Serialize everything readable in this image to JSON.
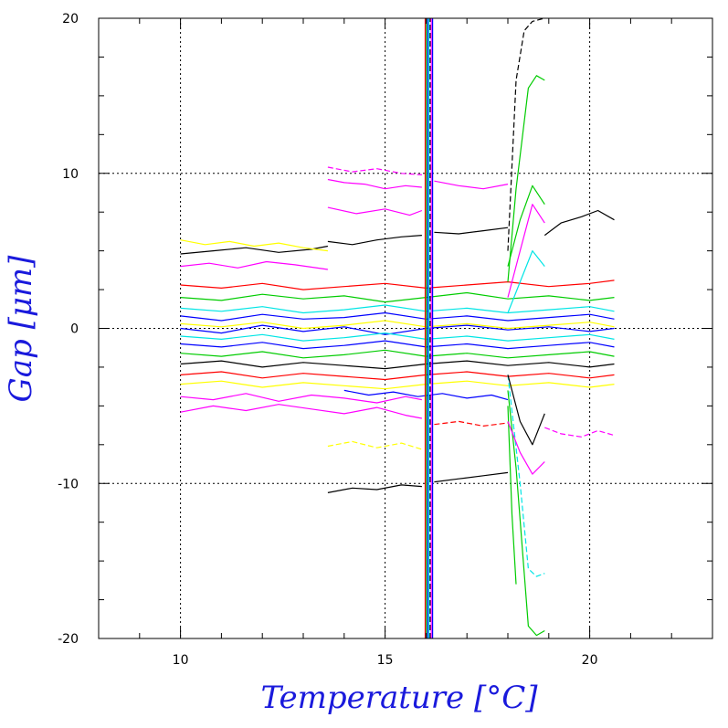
{
  "chart_data": {
    "type": "line",
    "title": "",
    "xlabel": "Temperature [°C]",
    "ylabel": "Gap [μm]",
    "xlim": [
      8,
      23
    ],
    "ylim": [
      -20,
      20
    ],
    "x_ticks": [
      {
        "value": 10,
        "label": "10"
      },
      {
        "value": 15,
        "label": "15"
      },
      {
        "value": 20,
        "label": "20"
      }
    ],
    "y_ticks": [
      {
        "value": 20,
        "label": "20"
      },
      {
        "value": 10,
        "label": "10"
      },
      {
        "value": 0,
        "label": "0"
      },
      {
        "value": -10,
        "label": "-10"
      },
      {
        "value": -20,
        "label": "-20"
      }
    ],
    "grid": true,
    "legend": "none",
    "colors": {
      "axis_title": "#1a1adc",
      "series_palette": [
        "#000000",
        "#ff0000",
        "#00cc00",
        "#0000ff",
        "#00e5e5",
        "#ff00ff",
        "#ffff00"
      ]
    },
    "series": [
      {
        "color": "#ff00ff",
        "style": "solid",
        "x": [
          13.6,
          14.0,
          14.5,
          15.0,
          15.5,
          15.9
        ],
        "y": [
          9.6,
          9.4,
          9.3,
          9.0,
          9.2,
          9.1
        ]
      },
      {
        "color": "#ff00ff",
        "style": "dashed",
        "x": [
          13.6,
          14.2,
          14.8,
          15.4,
          15.9
        ],
        "y": [
          10.4,
          10.1,
          10.3,
          10.0,
          9.9
        ]
      },
      {
        "color": "#ff00ff",
        "style": "solid",
        "x": [
          13.6,
          14.3,
          15.0,
          15.6,
          15.9
        ],
        "y": [
          7.8,
          7.4,
          7.7,
          7.3,
          7.6
        ]
      },
      {
        "color": "#ff00ff",
        "style": "solid",
        "x": [
          16.2,
          16.8,
          17.4,
          18.0
        ],
        "y": [
          9.5,
          9.2,
          9.0,
          9.3
        ]
      },
      {
        "color": "#000000",
        "style": "solid",
        "x": [
          13.6,
          14.2,
          14.8,
          15.4,
          15.9
        ],
        "y": [
          5.6,
          5.4,
          5.7,
          5.9,
          6.0
        ]
      },
      {
        "color": "#000000",
        "style": "solid",
        "x": [
          16.2,
          16.8,
          17.4,
          18.0
        ],
        "y": [
          6.2,
          6.1,
          6.3,
          6.5
        ]
      },
      {
        "color": "#000000",
        "style": "solid",
        "x": [
          18.9,
          19.3,
          19.8,
          20.2,
          20.6
        ],
        "y": [
          6.0,
          6.8,
          7.2,
          7.6,
          7.0
        ]
      },
      {
        "color": "#000000",
        "style": "solid",
        "x": [
          10.0,
          10.8,
          11.6,
          12.4,
          13.2,
          13.6
        ],
        "y": [
          4.8,
          5.0,
          5.2,
          4.9,
          5.1,
          5.3
        ]
      },
      {
        "color": "#ffff00",
        "style": "solid",
        "x": [
          10.0,
          10.6,
          11.2,
          11.8,
          12.4,
          13.0,
          13.6
        ],
        "y": [
          5.7,
          5.4,
          5.6,
          5.3,
          5.5,
          5.2,
          5.0
        ]
      },
      {
        "color": "#ff00ff",
        "style": "solid",
        "x": [
          10.0,
          10.7,
          11.4,
          12.1,
          12.8,
          13.6
        ],
        "y": [
          4.0,
          4.2,
          3.9,
          4.3,
          4.1,
          3.8
        ]
      },
      {
        "color": "#ff0000",
        "style": "solid",
        "x": [
          10.0,
          11.0,
          12.0,
          13.0,
          14.0,
          15.0,
          16.0,
          17.0,
          18.0,
          19.0,
          20.0,
          20.6
        ],
        "y": [
          2.8,
          2.6,
          2.9,
          2.5,
          2.7,
          2.9,
          2.6,
          2.8,
          3.0,
          2.7,
          2.9,
          3.1
        ]
      },
      {
        "color": "#00cc00",
        "style": "solid",
        "x": [
          10.0,
          11.0,
          12.0,
          13.0,
          14.0,
          15.0,
          16.0,
          17.0,
          18.0,
          19.0,
          20.0,
          20.6
        ],
        "y": [
          2.0,
          1.8,
          2.2,
          1.9,
          2.1,
          1.7,
          2.0,
          2.3,
          1.9,
          2.1,
          1.8,
          2.0
        ]
      },
      {
        "color": "#00e5e5",
        "style": "solid",
        "x": [
          10.0,
          11.0,
          12.0,
          13.0,
          14.0,
          15.0,
          16.0,
          17.0,
          18.0,
          19.0,
          20.0,
          20.6
        ],
        "y": [
          1.3,
          1.1,
          1.4,
          1.0,
          1.2,
          1.5,
          1.1,
          1.3,
          1.0,
          1.2,
          1.4,
          1.1
        ]
      },
      {
        "color": "#0000ff",
        "style": "solid",
        "x": [
          10.0,
          11.0,
          12.0,
          13.0,
          14.0,
          15.0,
          16.0,
          17.0,
          18.0,
          19.0,
          20.0,
          20.6
        ],
        "y": [
          0.8,
          0.5,
          0.9,
          0.6,
          0.7,
          1.0,
          0.6,
          0.8,
          0.5,
          0.7,
          0.9,
          0.6
        ]
      },
      {
        "color": "#ffff00",
        "style": "solid",
        "x": [
          10.0,
          11.0,
          12.0,
          13.0,
          14.0,
          15.0,
          16.0,
          17.0,
          18.0,
          19.0,
          20.0,
          20.6
        ],
        "y": [
          0.3,
          0.1,
          0.4,
          0.0,
          0.2,
          0.5,
          0.1,
          0.3,
          0.0,
          0.2,
          0.4,
          0.1
        ]
      },
      {
        "color": "#0000ff",
        "style": "solid",
        "x": [
          10.0,
          11.0,
          12.0,
          13.0,
          14.0,
          15.0,
          16.0,
          17.0,
          18.0,
          19.0,
          20.0,
          20.6
        ],
        "y": [
          0.0,
          -0.3,
          0.2,
          -0.2,
          0.1,
          -0.4,
          0.0,
          0.2,
          -0.1,
          0.1,
          -0.2,
          0.0
        ]
      },
      {
        "color": "#00e5e5",
        "style": "solid",
        "x": [
          10.0,
          11.0,
          12.0,
          13.0,
          14.0,
          15.0,
          16.0,
          17.0,
          18.0,
          19.0,
          20.0,
          20.6
        ],
        "y": [
          -0.5,
          -0.7,
          -0.4,
          -0.8,
          -0.6,
          -0.3,
          -0.7,
          -0.5,
          -0.8,
          -0.6,
          -0.4,
          -0.7
        ]
      },
      {
        "color": "#0000ff",
        "style": "solid",
        "x": [
          10.0,
          11.0,
          12.0,
          13.0,
          14.0,
          15.0,
          16.0,
          17.0,
          18.0,
          19.0,
          20.0,
          20.6
        ],
        "y": [
          -1.0,
          -1.2,
          -0.9,
          -1.3,
          -1.1,
          -0.8,
          -1.2,
          -1.0,
          -1.3,
          -1.1,
          -0.9,
          -1.2
        ]
      },
      {
        "color": "#00cc00",
        "style": "solid",
        "x": [
          10.0,
          11.0,
          12.0,
          13.0,
          14.0,
          15.0,
          16.0,
          17.0,
          18.0,
          19.0,
          20.0,
          20.6
        ],
        "y": [
          -1.6,
          -1.8,
          -1.5,
          -1.9,
          -1.7,
          -1.4,
          -1.8,
          -1.6,
          -1.9,
          -1.7,
          -1.5,
          -1.8
        ]
      },
      {
        "color": "#000000",
        "style": "solid",
        "x": [
          10.0,
          11.0,
          12.0,
          13.0,
          14.0,
          15.0,
          16.0,
          17.0,
          18.0,
          19.0,
          20.0,
          20.6
        ],
        "y": [
          -2.3,
          -2.1,
          -2.5,
          -2.2,
          -2.4,
          -2.6,
          -2.3,
          -2.1,
          -2.4,
          -2.2,
          -2.5,
          -2.3
        ]
      },
      {
        "color": "#ff0000",
        "style": "solid",
        "x": [
          10.0,
          11.0,
          12.0,
          13.0,
          14.0,
          15.0,
          16.0,
          17.0,
          18.0,
          19.0,
          20.0,
          20.6
        ],
        "y": [
          -3.0,
          -2.8,
          -3.2,
          -2.9,
          -3.1,
          -3.3,
          -3.0,
          -2.8,
          -3.1,
          -2.9,
          -3.2,
          -3.0
        ]
      },
      {
        "color": "#ffff00",
        "style": "solid",
        "x": [
          10.0,
          11.0,
          12.0,
          13.0,
          14.0,
          15.0,
          16.0,
          17.0,
          18.0,
          19.0,
          20.0,
          20.6
        ],
        "y": [
          -3.6,
          -3.4,
          -3.8,
          -3.5,
          -3.7,
          -3.9,
          -3.6,
          -3.4,
          -3.7,
          -3.5,
          -3.8,
          -3.6
        ]
      },
      {
        "color": "#ff00ff",
        "style": "solid",
        "x": [
          10.0,
          10.8,
          11.6,
          12.4,
          13.2,
          14.0,
          14.8,
          15.5,
          15.9
        ],
        "y": [
          -5.4,
          -5.0,
          -5.3,
          -4.9,
          -5.2,
          -5.5,
          -5.1,
          -5.6,
          -5.8
        ]
      },
      {
        "color": "#ff00ff",
        "style": "solid",
        "x": [
          10.0,
          10.8,
          11.6,
          12.4,
          13.2,
          14.0,
          14.8,
          15.5,
          15.9
        ],
        "y": [
          -4.4,
          -4.6,
          -4.2,
          -4.7,
          -4.3,
          -4.5,
          -4.8,
          -4.4,
          -4.6
        ]
      },
      {
        "color": "#0000ff",
        "style": "solid",
        "x": [
          14.0,
          14.6,
          15.2,
          15.8,
          16.4,
          17.0,
          17.6,
          18.0
        ],
        "y": [
          -4.0,
          -4.3,
          -4.1,
          -4.4,
          -4.2,
          -4.5,
          -4.3,
          -4.6
        ]
      },
      {
        "color": "#ff00ff",
        "style": "dashed",
        "x": [
          18.9,
          19.3,
          19.8,
          20.2,
          20.6
        ],
        "y": [
          -6.4,
          -6.8,
          -7.0,
          -6.6,
          -6.9
        ]
      },
      {
        "color": "#ffff00",
        "style": "dashed",
        "x": [
          13.6,
          14.2,
          14.8,
          15.4,
          15.9
        ],
        "y": [
          -7.6,
          -7.3,
          -7.7,
          -7.4,
          -7.8
        ]
      },
      {
        "color": "#000000",
        "style": "solid",
        "x": [
          13.6,
          14.2,
          14.8,
          15.4,
          15.9
        ],
        "y": [
          -10.6,
          -10.3,
          -10.4,
          -10.1,
          -10.2
        ]
      },
      {
        "color": "#000000",
        "style": "solid",
        "x": [
          16.2,
          16.8,
          17.4,
          18.0
        ],
        "y": [
          -9.9,
          -9.7,
          -9.5,
          -9.3
        ]
      },
      {
        "color": "#ff0000",
        "style": "dashed",
        "x": [
          16.2,
          16.8,
          17.4,
          18.0
        ],
        "y": [
          -6.2,
          -6.0,
          -6.3,
          -6.1
        ]
      },
      {
        "color": "#ff0000",
        "style": "solid",
        "x": [
          15.98,
          15.98
        ],
        "y": [
          -20,
          20
        ]
      },
      {
        "color": "#00cc00",
        "style": "solid",
        "x": [
          16.01,
          16.01
        ],
        "y": [
          -20,
          20
        ]
      },
      {
        "color": "#0000ff",
        "style": "solid",
        "x": [
          16.04,
          16.04
        ],
        "y": [
          -20,
          20
        ]
      },
      {
        "color": "#00e5e5",
        "style": "solid",
        "x": [
          16.07,
          16.07
        ],
        "y": [
          -20,
          20
        ]
      },
      {
        "color": "#000000",
        "style": "dashed",
        "x": [
          16.1,
          16.1
        ],
        "y": [
          -20,
          20
        ]
      },
      {
        "color": "#ff00ff",
        "style": "solid",
        "x": [
          16.13,
          16.13
        ],
        "y": [
          -20,
          20
        ]
      },
      {
        "color": "#0000ff",
        "style": "solid",
        "x": [
          16.16,
          16.16
        ],
        "y": [
          -20,
          20
        ]
      },
      {
        "color": "#000000",
        "style": "dashed",
        "x": [
          18.0,
          18.2,
          18.4,
          18.6,
          18.9
        ],
        "y": [
          5.0,
          16.0,
          19.2,
          19.8,
          20.0
        ]
      },
      {
        "color": "#00cc00",
        "style": "solid",
        "x": [
          18.0,
          18.2,
          18.5,
          18.7,
          18.9
        ],
        "y": [
          3.0,
          9.0,
          15.5,
          16.3,
          16.0
        ]
      },
      {
        "color": "#00cc00",
        "style": "solid",
        "x": [
          18.0,
          18.2,
          18.5,
          18.7,
          18.9
        ],
        "y": [
          -4.0,
          -9.0,
          -19.2,
          -19.8,
          -19.5
        ]
      },
      {
        "color": "#00e5e5",
        "style": "dashed",
        "x": [
          18.0,
          18.3,
          18.5,
          18.7,
          18.9
        ],
        "y": [
          -3.0,
          -10.0,
          -15.5,
          -16.0,
          -15.8
        ]
      },
      {
        "color": "#00cc00",
        "style": "solid",
        "x": [
          18.0,
          18.1,
          18.2
        ],
        "y": [
          -5.0,
          -12.0,
          -16.5
        ]
      },
      {
        "color": "#ff00ff",
        "style": "solid",
        "x": [
          18.0,
          18.3,
          18.6,
          18.9
        ],
        "y": [
          -6.0,
          -8.0,
          -9.4,
          -8.6
        ]
      },
      {
        "color": "#000000",
        "style": "solid",
        "x": [
          18.0,
          18.3,
          18.6,
          18.9
        ],
        "y": [
          -3.0,
          -6.0,
          -7.5,
          -5.5
        ]
      },
      {
        "color": "#00cc00",
        "style": "solid",
        "x": [
          18.0,
          18.3,
          18.6,
          18.9
        ],
        "y": [
          4.0,
          7.0,
          9.2,
          8.0
        ]
      },
      {
        "color": "#ff00ff",
        "style": "solid",
        "x": [
          18.0,
          18.3,
          18.6,
          18.9
        ],
        "y": [
          2.0,
          5.0,
          8.0,
          6.8
        ]
      },
      {
        "color": "#00e5e5",
        "style": "solid",
        "x": [
          18.0,
          18.3,
          18.6,
          18.9
        ],
        "y": [
          1.0,
          3.0,
          5.0,
          4.0
        ]
      }
    ]
  }
}
